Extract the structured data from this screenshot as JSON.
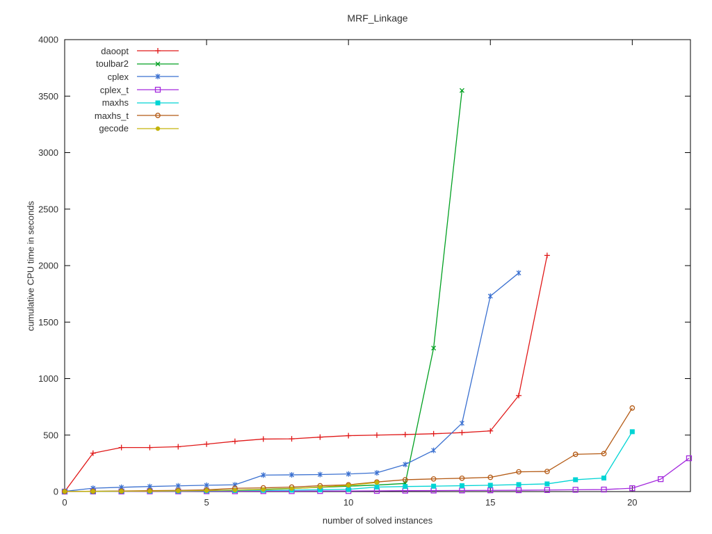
{
  "window": {
    "background": "#ffffff"
  },
  "chart_data": {
    "type": "line",
    "title": "MRF_Linkage",
    "xlabel": "number of solved instances",
    "ylabel": "cumulative CPU time in seconds",
    "xlim": [
      0,
      22.05
    ],
    "ylim": [
      0,
      4000
    ],
    "xticks": [
      0,
      5,
      10,
      15,
      20
    ],
    "yticks": [
      0,
      500,
      1000,
      1500,
      2000,
      2500,
      3000,
      3500,
      4000
    ],
    "grid": false,
    "legend_position": "top-left-inside",
    "axis_color": "#000000",
    "text_color": "#303030",
    "series": [
      {
        "name": "daoopt",
        "color": "#e01818",
        "marker": "plus",
        "x": [
          0,
          1,
          2,
          3,
          4,
          5,
          6,
          7,
          8,
          9,
          10,
          11,
          12,
          13,
          14,
          15,
          16,
          17
        ],
        "values": [
          0,
          340,
          390,
          390,
          397,
          420,
          445,
          465,
          467,
          482,
          495,
          500,
          505,
          512,
          522,
          537,
          850,
          2090
        ]
      },
      {
        "name": "toulbar2",
        "color": "#00a020",
        "marker": "cross",
        "x": [
          0,
          1,
          2,
          3,
          4,
          5,
          6,
          7,
          8,
          9,
          10,
          11,
          12,
          13,
          14
        ],
        "values": [
          1,
          2,
          4,
          6,
          8,
          10,
          14,
          20,
          28,
          38,
          48,
          58,
          72,
          1270,
          3550
        ]
      },
      {
        "name": "cplex",
        "color": "#3a70d0",
        "marker": "star",
        "x": [
          0,
          1,
          2,
          3,
          4,
          5,
          6,
          7,
          8,
          9,
          10,
          11,
          12,
          13,
          14,
          15,
          16
        ],
        "values": [
          2,
          30,
          38,
          45,
          51,
          56,
          60,
          146,
          148,
          151,
          156,
          166,
          240,
          365,
          605,
          1730,
          1935
        ]
      },
      {
        "name": "cplex_t",
        "color": "#a328dd",
        "marker": "square-open",
        "x": [
          0,
          1,
          2,
          3,
          4,
          5,
          6,
          7,
          8,
          9,
          10,
          11,
          12,
          13,
          14,
          15,
          16,
          17,
          18,
          19,
          20,
          21,
          22
        ],
        "values": [
          0,
          1,
          1,
          2,
          2,
          3,
          3,
          4,
          4,
          5,
          5,
          6,
          8,
          9,
          10,
          11,
          12,
          14,
          16,
          18,
          30,
          110,
          295
        ]
      },
      {
        "name": "maxhs",
        "color": "#00d4d4",
        "marker": "square-filled",
        "x": [
          0,
          1,
          2,
          3,
          4,
          5,
          6,
          7,
          8,
          9,
          10,
          11,
          12,
          13,
          14,
          15,
          16,
          17,
          18,
          19,
          20
        ],
        "values": [
          1,
          2,
          3,
          4,
          5,
          7,
          9,
          11,
          13,
          16,
          20,
          40,
          45,
          48,
          52,
          56,
          62,
          68,
          105,
          120,
          530
        ]
      },
      {
        "name": "maxhs_t",
        "color": "#b45a14",
        "marker": "circle-open",
        "x": [
          0,
          1,
          2,
          3,
          4,
          5,
          6,
          7,
          8,
          9,
          10,
          11,
          12,
          13,
          14,
          15,
          16,
          17,
          18,
          19,
          20
        ],
        "values": [
          1,
          3,
          5,
          8,
          11,
          15,
          29,
          33,
          40,
          52,
          60,
          85,
          105,
          112,
          118,
          126,
          175,
          178,
          330,
          336,
          740
        ]
      },
      {
        "name": "gecode",
        "color": "#c3b30a",
        "marker": "circle-filled",
        "x": [
          0,
          1,
          2,
          3,
          4,
          5,
          6,
          7,
          8,
          9,
          10,
          11
        ],
        "values": [
          1,
          2,
          3,
          4,
          6,
          9,
          13,
          18,
          26,
          40,
          55,
          80
        ]
      }
    ]
  }
}
